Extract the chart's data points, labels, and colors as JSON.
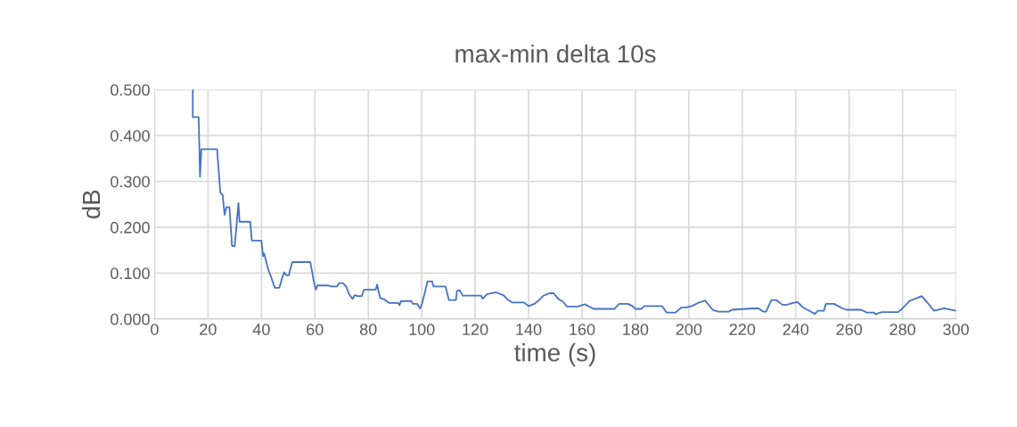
{
  "chart_data": {
    "type": "line",
    "title": "max-min delta 10s",
    "xlabel": "time (s)",
    "ylabel": "dB",
    "xlim": [
      0,
      300
    ],
    "xticks": [
      0,
      20,
      40,
      60,
      80,
      100,
      120,
      140,
      160,
      180,
      200,
      220,
      240,
      260,
      280,
      300
    ],
    "ylim": [
      0,
      0.5
    ],
    "yticks": [
      {
        "value": 0,
        "label": "0.000"
      },
      {
        "value": 0.1,
        "label": "0.100"
      },
      {
        "value": 0.2,
        "label": "0.200"
      },
      {
        "value": 0.3,
        "label": "0.300"
      },
      {
        "value": 0.4,
        "label": "0.400"
      },
      {
        "value": 0.5,
        "label": "0.500"
      }
    ],
    "grid": true,
    "legend": false,
    "marker": "none",
    "line_style": "solid",
    "series": [
      {
        "color": "#4472c4",
        "x": [
          14.3,
          14.3,
          16.5,
          17.0,
          17.5,
          23.4,
          24.6,
          25.5,
          26.2,
          26.9,
          28.0,
          29.0,
          30.0,
          31.4,
          31.8,
          35.8,
          36.4,
          40.0,
          40.6,
          41.0,
          41.7,
          42.6,
          43.7,
          45.0,
          46.7,
          47.8,
          48.5,
          49.4,
          50.3,
          50.7,
          51.6,
          58.3,
          59.0,
          59.6,
          60.4,
          60.9,
          65.0,
          66.0,
          68.3,
          69.0,
          70.5,
          71.7,
          72.8,
          74.1,
          75.0,
          76.0,
          77.6,
          78.3,
          79.0,
          82.8,
          83.3,
          84.4,
          86.1,
          87.8,
          91.1,
          91.7,
          92.2,
          96.1,
          96.7,
          98.3,
          99.4,
          100.2,
          102.2,
          103.9,
          104.4,
          108.9,
          110.2,
          112.8,
          113.2,
          114.2,
          115.3,
          122.2,
          122.8,
          124.4,
          127.8,
          130.6,
          132.2,
          133.9,
          138.3,
          140.0,
          142.2,
          143.9,
          145.6,
          147.8,
          149.4,
          151.1,
          152.8,
          154.4,
          158.3,
          161.1,
          164.4,
          172.2,
          173.9,
          177.2,
          178.9,
          180.0,
          182.2,
          183.3,
          190.0,
          191.7,
          195.0,
          197.2,
          198.9,
          201.1,
          203.9,
          206.1,
          208.9,
          211.1,
          215.0,
          216.1,
          223.9,
          226.1,
          227.8,
          228.9,
          230.9,
          232.8,
          235.0,
          236.7,
          238.9,
          240.6,
          242.8,
          245.0,
          247.2,
          248.3,
          250.6,
          251.3,
          254.4,
          257.2,
          258.9,
          264.4,
          266.7,
          269.4,
          269.8,
          272.2,
          278.3,
          279.4,
          282.8,
          285.6,
          287.2,
          289.4,
          291.7,
          295.6,
          300.0
        ],
        "values": [
          0.5,
          0.44,
          0.44,
          0.31,
          0.37,
          0.37,
          0.276,
          0.27,
          0.227,
          0.244,
          0.244,
          0.159,
          0.159,
          0.253,
          0.212,
          0.212,
          0.171,
          0.171,
          0.137,
          0.143,
          0.127,
          0.107,
          0.09,
          0.068,
          0.068,
          0.09,
          0.102,
          0.095,
          0.095,
          0.107,
          0.124,
          0.124,
          0.102,
          0.081,
          0.064,
          0.073,
          0.073,
          0.071,
          0.071,
          0.078,
          0.078,
          0.071,
          0.054,
          0.044,
          0.052,
          0.05,
          0.05,
          0.063,
          0.064,
          0.064,
          0.075,
          0.046,
          0.042,
          0.035,
          0.035,
          0.03,
          0.039,
          0.039,
          0.033,
          0.033,
          0.023,
          0.035,
          0.082,
          0.082,
          0.071,
          0.071,
          0.041,
          0.041,
          0.061,
          0.063,
          0.051,
          0.051,
          0.044,
          0.054,
          0.058,
          0.052,
          0.042,
          0.036,
          0.036,
          0.028,
          0.033,
          0.041,
          0.051,
          0.056,
          0.056,
          0.044,
          0.038,
          0.027,
          0.027,
          0.032,
          0.022,
          0.022,
          0.033,
          0.033,
          0.028,
          0.022,
          0.022,
          0.028,
          0.028,
          0.014,
          0.014,
          0.025,
          0.025,
          0.028,
          0.036,
          0.04,
          0.02,
          0.016,
          0.016,
          0.02,
          0.023,
          0.023,
          0.016,
          0.016,
          0.041,
          0.041,
          0.031,
          0.031,
          0.035,
          0.037,
          0.025,
          0.018,
          0.011,
          0.018,
          0.018,
          0.033,
          0.033,
          0.024,
          0.02,
          0.02,
          0.014,
          0.014,
          0.01,
          0.015,
          0.015,
          0.02,
          0.04,
          0.046,
          0.05,
          0.035,
          0.018,
          0.023,
          0.018
        ]
      }
    ]
  }
}
